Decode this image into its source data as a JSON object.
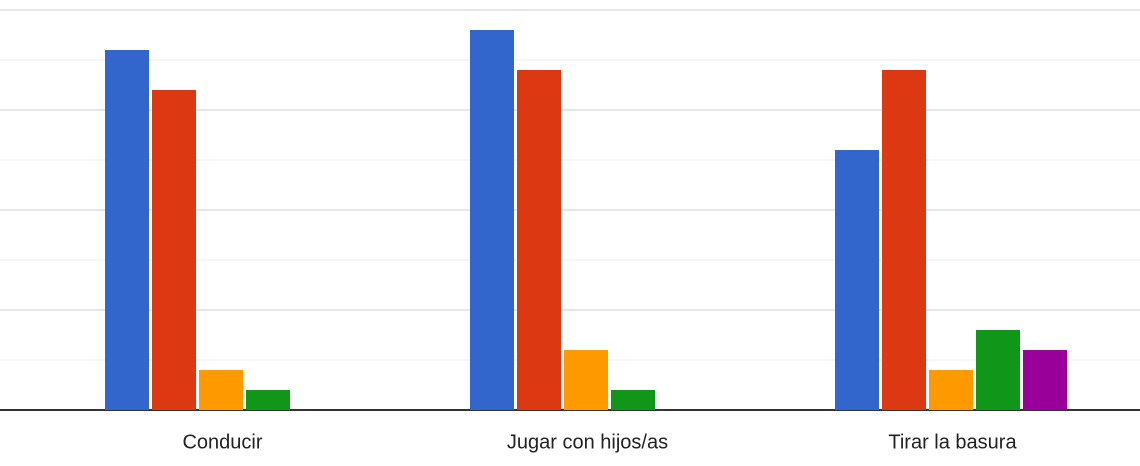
{
  "chart_data": {
    "type": "bar",
    "categories": [
      "Conducir",
      "Jugar con hijos/as",
      "Tirar la basura"
    ],
    "series": [
      {
        "color": "#3366cc",
        "values": [
          18,
          19,
          13
        ]
      },
      {
        "color": "#dc3912",
        "values": [
          16,
          17,
          17
        ]
      },
      {
        "color": "#ff9900",
        "values": [
          2,
          3,
          2
        ]
      },
      {
        "color": "#109618",
        "values": [
          1,
          1,
          4
        ]
      },
      {
        "color": "#990099",
        "values": [
          0,
          0,
          3
        ]
      }
    ],
    "ylim": [
      0,
      20
    ],
    "yticks": [
      0,
      2.5,
      5,
      7.5,
      10,
      12.5,
      15,
      17.5,
      20
    ],
    "grid": true
  }
}
